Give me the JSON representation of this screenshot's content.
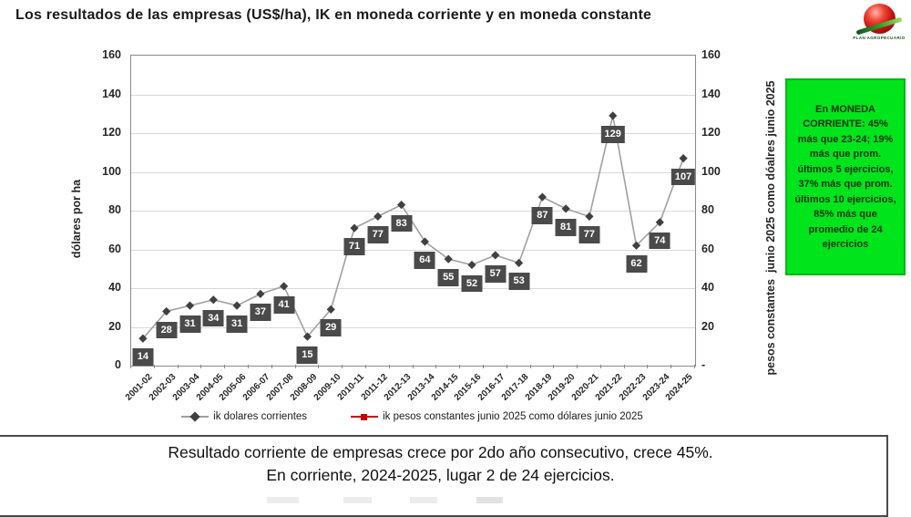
{
  "title": "Los resultados de las empresas (US$/ha), IK en moneda corriente y en moneda constante",
  "logo": {
    "caption": "PLAN AGROPECUARIO"
  },
  "chart_data": {
    "type": "line",
    "title": "Los resultados de las empresas (US$/ha), IK en moneda corriente y en moneda constante",
    "categories": [
      "2001-02",
      "2002-03",
      "2003-04",
      "2004-05",
      "2005-06",
      "2006-07",
      "2007-08",
      "2008-09",
      "2009-10",
      "2010-11",
      "2011-12",
      "2012-13",
      "2013-14",
      "2014-15",
      "2015-16",
      "2016-17",
      "2017-18",
      "2018-19",
      "2019-20",
      "2020-21",
      "2021-22",
      "2022-23",
      "2023-24",
      "2024-25"
    ],
    "series": [
      {
        "name": "ik dolares corrientes",
        "marker": "diamond",
        "line_color": "#a0a0a0",
        "marker_color": "#404040",
        "values": [
          14,
          28,
          31,
          34,
          31,
          37,
          41,
          15,
          29,
          71,
          77,
          83,
          64,
          55,
          52,
          57,
          53,
          87,
          81,
          77,
          129,
          62,
          74,
          107
        ]
      },
      {
        "name": "ik pesos constantes junio 2025 como dólares junio 2025",
        "marker": "square",
        "line_color": "#cc0000",
        "marker_color": "#cc0000",
        "values": []
      }
    ],
    "xlabel": "",
    "ylabel_left": "dólares por ha",
    "ylabel_right": "pesos constantes  junio 2025 como dóalres junio 2025",
    "ylim": [
      0,
      160
    ],
    "ytick_step": 20,
    "right_zero_label": "-",
    "grid": true,
    "legend_position": "bottom",
    "data_labels": {
      "bg": "#4a4a4a",
      "color": "#ffffff"
    }
  },
  "annotation": {
    "text": "En MONEDA CORRIENTE: 45% más que 23-24; 19% más que prom. últimos 5 ejercicios, 37% más que prom. últimos 10 ejercicios, 85% más que promedio de 24 ejercicios",
    "bg": "#00e41c",
    "border": "#00b517",
    "text_color": "#0a320a"
  },
  "footer": {
    "line1": "Resultado corriente de empresas crece por 2do año consecutivo, crece 45%.",
    "line2": "En corriente, 2024-2025, lugar 2 de 24 ejercicios."
  }
}
